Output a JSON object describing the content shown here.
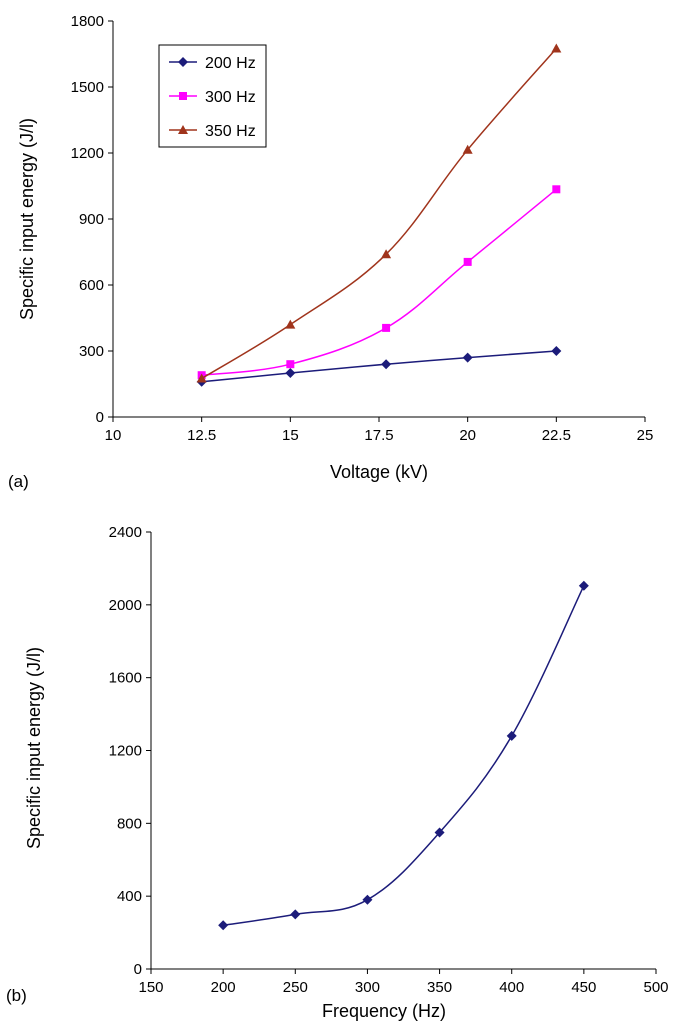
{
  "chart_data": [
    {
      "panel_label": "(a)",
      "type": "line",
      "xlabel": "Voltage (kV)",
      "ylabel": "Specific input energy (J/l)",
      "xlim": [
        10,
        25
      ],
      "ylim": [
        0,
        1800
      ],
      "xticks": [
        "10",
        "12.5",
        "15",
        "17.5",
        "20",
        "22.5",
        "25"
      ],
      "yticks": [
        "0",
        "300",
        "600",
        "900",
        "1200",
        "1500",
        "1800"
      ],
      "x": [
        12.5,
        15,
        17.7,
        20,
        22.5
      ],
      "legend_position": "top-left",
      "grid": false,
      "series": [
        {
          "name": "200 Hz",
          "color": "#1c1c7a",
          "marker": "diamond",
          "values": [
            160,
            200,
            240,
            270,
            300
          ]
        },
        {
          "name": "300 Hz",
          "color": "#ff00ff",
          "marker": "square",
          "values": [
            190,
            240,
            405,
            705,
            1035
          ]
        },
        {
          "name": "350 Hz",
          "color": "#a0341c",
          "marker": "triangle",
          "values": [
            175,
            420,
            740,
            1215,
            1675
          ]
        }
      ]
    },
    {
      "panel_label": "(b)",
      "type": "line",
      "xlabel": "Frequency (Hz)",
      "ylabel": "Specific input energy (J/l)",
      "xlim": [
        150,
        500
      ],
      "ylim": [
        0,
        2400
      ],
      "xticks": [
        "150",
        "200",
        "250",
        "300",
        "350",
        "400",
        "450",
        "500"
      ],
      "yticks": [
        "0",
        "400",
        "800",
        "1200",
        "1600",
        "2000",
        "2400"
      ],
      "x": [
        200,
        250,
        300,
        350,
        400,
        450
      ],
      "grid": false,
      "series": [
        {
          "name": "",
          "color": "#1c1c7a",
          "marker": "diamond",
          "values": [
            240,
            300,
            380,
            750,
            1280,
            2105
          ]
        }
      ]
    }
  ]
}
